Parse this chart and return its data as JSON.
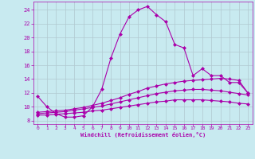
{
  "xlabel": "Windchill (Refroidissement éolien,°C)",
  "xlim": [
    -0.5,
    23.5
  ],
  "ylim": [
    7.5,
    25.2
  ],
  "yticks": [
    8,
    10,
    12,
    14,
    16,
    18,
    20,
    22,
    24
  ],
  "xticks": [
    0,
    1,
    2,
    3,
    4,
    5,
    6,
    7,
    8,
    9,
    10,
    11,
    12,
    13,
    14,
    15,
    16,
    17,
    18,
    19,
    20,
    21,
    22,
    23
  ],
  "bg_color": "#c8eaf0",
  "grid_color": "#b0c8d0",
  "line_color": "#aa00aa",
  "line_width": 0.8,
  "marker": "D",
  "marker_size": 2.0,
  "series": [
    [
      11.5,
      10.0,
      9.0,
      8.5,
      8.5,
      8.7,
      10.0,
      12.5,
      17.0,
      20.5,
      23.0,
      24.0,
      24.5,
      23.3,
      22.3,
      19.0,
      18.5,
      14.5,
      15.5,
      14.5,
      14.5,
      13.5,
      13.5,
      12.0
    ],
    [
      9.2,
      9.3,
      9.4,
      9.5,
      9.7,
      9.9,
      10.2,
      10.5,
      10.9,
      11.3,
      11.8,
      12.2,
      12.7,
      13.0,
      13.3,
      13.5,
      13.7,
      13.8,
      13.9,
      14.0,
      14.1,
      14.0,
      13.8,
      12.0
    ],
    [
      9.0,
      9.1,
      9.2,
      9.3,
      9.5,
      9.7,
      9.9,
      10.1,
      10.4,
      10.7,
      11.0,
      11.3,
      11.6,
      11.9,
      12.1,
      12.3,
      12.4,
      12.5,
      12.5,
      12.4,
      12.3,
      12.1,
      11.9,
      11.7
    ],
    [
      8.8,
      8.8,
      8.9,
      9.0,
      9.1,
      9.2,
      9.4,
      9.5,
      9.7,
      9.9,
      10.1,
      10.3,
      10.5,
      10.7,
      10.8,
      11.0,
      11.0,
      11.0,
      11.0,
      10.9,
      10.8,
      10.7,
      10.5,
      10.4
    ]
  ]
}
